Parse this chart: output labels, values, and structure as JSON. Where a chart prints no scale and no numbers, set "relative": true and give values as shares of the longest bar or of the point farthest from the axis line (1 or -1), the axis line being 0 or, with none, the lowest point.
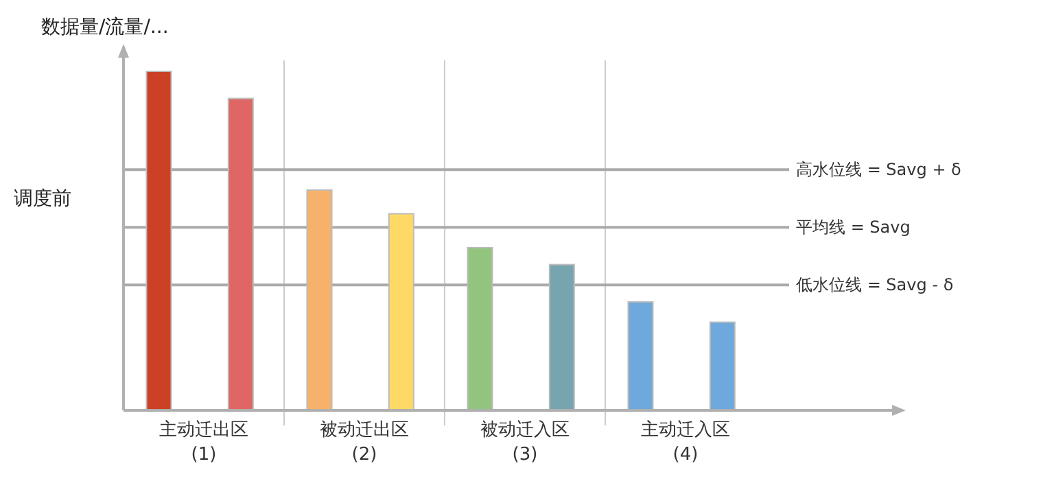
{
  "chart_data": {
    "type": "bar",
    "relative": true,
    "ylabel": "数据量/流量/...",
    "annotations": [
      "调度前"
    ],
    "categories": [
      "主动迁出区\n(1)",
      "被动迁出区\n(2)",
      "被动迁入区\n(3)",
      "主动迁入区\n(4)"
    ],
    "series": [
      {
        "colors": [
          "#cc4125",
          "#f6b26b",
          "#93c47d",
          "#6fa8dc"
        ],
        "values": [
          1,
          0.65,
          0.48,
          0.32
        ]
      },
      {
        "colors": [
          "#e06666",
          "#ffd966",
          "#76a5af",
          "#6fa8dc"
        ],
        "values": [
          0.92,
          0.58,
          0.43,
          0.26
        ]
      }
    ],
    "ref_lines": [
      {
        "axis": "y",
        "value": 0.71,
        "label": "高水位线 = Savg + δ"
      },
      {
        "axis": "y",
        "value": 0.54,
        "label": "平均线 = Savg"
      },
      {
        "axis": "y",
        "value": 0.37,
        "label": "低水位线 = Savg - δ"
      }
    ],
    "grid": "x",
    "legend": false
  }
}
